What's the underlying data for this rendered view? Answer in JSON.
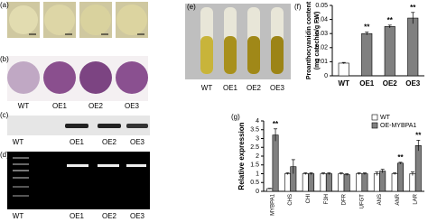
{
  "panel_labels": [
    "(a)",
    "(b)",
    "(c)",
    "(d)",
    "(e)",
    "(f)",
    "(g)"
  ],
  "sample_labels": {
    "b": [
      "WT",
      "OE1",
      "OE2",
      "OE3"
    ],
    "c": [
      "WT",
      "OE1",
      "OE2",
      "OE3"
    ],
    "d": [
      "WT",
      "OE1",
      "OE2",
      "OE3"
    ],
    "e": [
      "WT",
      "OE1",
      "OE2",
      "OE3"
    ]
  },
  "chart_data": [
    {
      "type": "bar",
      "ylabel": [
        "Proanthocyanidin content",
        "(mg catechin/g FW)"
      ],
      "categories": [
        "WT",
        "OE1",
        "OE2",
        "OE3"
      ],
      "values": [
        0.009,
        0.03,
        0.035,
        0.041
      ],
      "errors": [
        0.0005,
        0.001,
        0.001,
        0.004
      ],
      "colors": [
        "#ffffff",
        "#808080",
        "#808080",
        "#808080"
      ],
      "ylim": [
        0,
        0.05
      ],
      "yticks": [
        0,
        0.01,
        0.02,
        0.03,
        0.04,
        0.05
      ],
      "annotations": [
        {
          "text": "**",
          "category": "OE1"
        },
        {
          "text": "**",
          "category": "OE2"
        },
        {
          "text": "**",
          "category": "OE3"
        }
      ]
    },
    {
      "type": "grouped-bar",
      "ylabel": "Relative expression",
      "categories": [
        "MYBPA1",
        "CHS",
        "CHI",
        "F3H",
        "DFR",
        "UFGT",
        "ANS",
        "ANR",
        "LAR"
      ],
      "series": [
        {
          "name": "WT",
          "color": "#ffffff",
          "values": [
            0.15,
            1,
            1,
            1,
            1,
            1,
            1,
            1,
            1
          ],
          "errors": [
            0.02,
            0.05,
            0.05,
            0.05,
            0.05,
            0.05,
            0.1,
            0.05,
            0.1
          ]
        },
        {
          "name": "OE-MYBPA1",
          "color": "#808080",
          "values": [
            3.2,
            1.4,
            1,
            1,
            0.95,
            1,
            1.15,
            1.6,
            2.6
          ],
          "errors": [
            0.35,
            0.4,
            0.05,
            0.05,
            0.05,
            0.05,
            0.1,
            0.05,
            0.3
          ]
        }
      ],
      "ylim": [
        0,
        4
      ],
      "yticks": [
        0,
        0.5,
        1,
        1.5,
        2,
        2.5,
        3,
        3.5,
        4
      ],
      "legend": "upper right",
      "annotations": [
        {
          "text": "**",
          "category": "MYBPA1"
        },
        {
          "text": "**",
          "category": "ANR"
        },
        {
          "text": "**",
          "category": "LAR"
        }
      ]
    }
  ]
}
